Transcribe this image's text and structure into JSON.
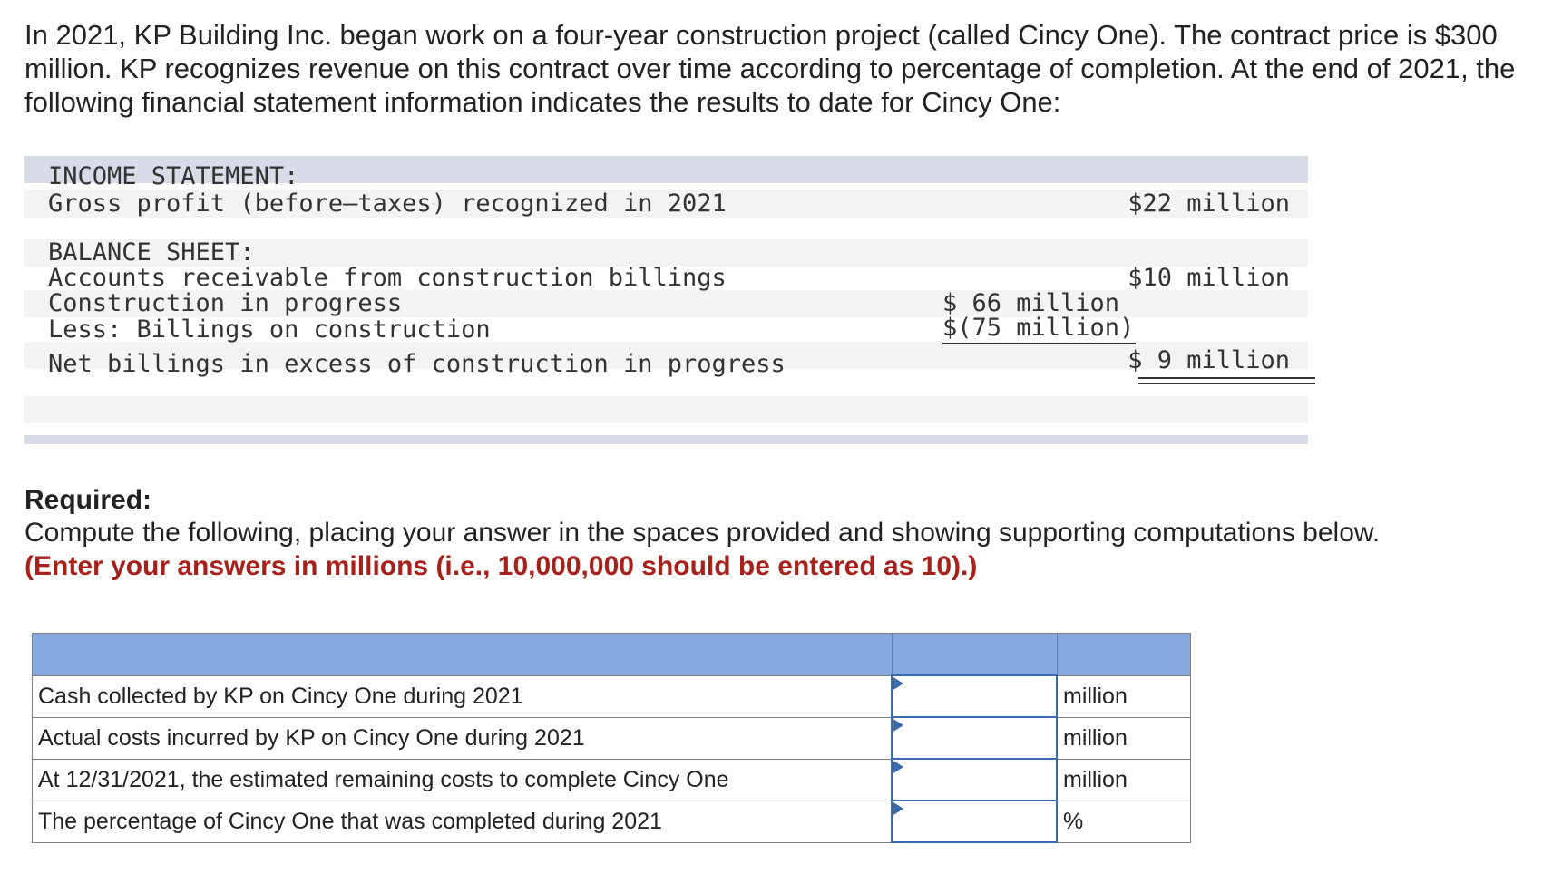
{
  "intro": "In 2021, KP Building Inc. began work on a four-year construction project (called Cincy One). The contract price is $300 million. KP recognizes revenue on this contract over time according to percentage of completion. At the end of 2021, the following financial statement information indicates the results to date for Cincy One:",
  "financials": {
    "income_heading": "INCOME STATEMENT:",
    "gross_profit_label": "Gross profit (before–taxes) recognized in 2021",
    "gross_profit_value": "$22 million",
    "balance_heading": "BALANCE SHEET:",
    "ar_label": "Accounts receivable from construction billings",
    "ar_value": "$10 million",
    "cip_label": "Construction in progress",
    "cip_value": "$ 66 million",
    "billings_label": "Less: Billings on construction",
    "billings_value": "$(75 million)",
    "net_label": "Net billings in excess of construction in progress",
    "net_value": "$ 9 million"
  },
  "required": {
    "title": "Required:",
    "text": "Compute the following, placing your answer in the spaces provided and showing supporting computations below.",
    "note": "(Enter your answers in millions (i.e., 10,000,000 should be entered as 10).)"
  },
  "answers": [
    {
      "label": "Cash collected by KP on Cincy One during 2021",
      "value": "",
      "unit": "million"
    },
    {
      "label": "Actual costs incurred by KP on Cincy One during 2021",
      "value": "",
      "unit": "million"
    },
    {
      "label": "At 12/31/2021, the estimated remaining costs to complete Cincy One",
      "value": "",
      "unit": "million"
    },
    {
      "label": "The percentage of Cincy One that was completed during 2021",
      "value": "",
      "unit": "%"
    }
  ],
  "colors": {
    "header_fill": "#86aadf",
    "note_red": "#a8201a",
    "band_gray": "#d7dce6",
    "input_border": "#3a6bb0"
  }
}
